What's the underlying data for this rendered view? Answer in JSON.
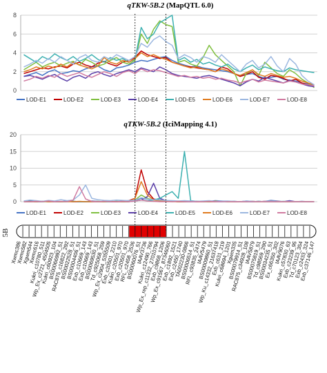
{
  "chart_data": [
    {
      "type": "line",
      "title_italic": "qTKW-5B.2",
      "title_rest": " (MapQTL 6.0)",
      "ylim": [
        0,
        8
      ],
      "yticks": [
        0,
        2,
        4,
        6,
        8
      ],
      "grid": true,
      "legend_position": "bottom",
      "qtl_interval_markers": [
        18,
        23
      ],
      "series": [
        {
          "name": "LOD-E1",
          "color": "#4472c4",
          "values": [
            1.5,
            1.7,
            1.9,
            1.6,
            2.0,
            2.2,
            1.8,
            1.9,
            2.1,
            2.0,
            2.3,
            2.5,
            2.6,
            2.2,
            2.0,
            2.4,
            2.5,
            2.7,
            3.0,
            3.2,
            3.1,
            3.3,
            3.5,
            3.6,
            3.2,
            2.9,
            2.7,
            2.5,
            2.6,
            2.4,
            2.3,
            2.2,
            2.1,
            2.0,
            1.8,
            1.6,
            1.7,
            1.8,
            1.5,
            1.3,
            1.4,
            1.5,
            1.2,
            1.1,
            1.0,
            0.8,
            0.7,
            0.6
          ]
        },
        {
          "name": "LOD-E2",
          "color": "#c00000",
          "values": [
            1.8,
            2.0,
            2.2,
            2.4,
            2.3,
            2.5,
            2.6,
            2.4,
            2.8,
            3.0,
            2.7,
            2.5,
            2.9,
            3.1,
            2.8,
            2.6,
            3.0,
            3.2,
            3.5,
            4.2,
            3.8,
            3.6,
            3.4,
            3.5,
            3.0,
            2.8,
            2.6,
            2.5,
            2.4,
            2.3,
            2.2,
            2.0,
            2.5,
            2.3,
            1.8,
            1.5,
            1.7,
            2.0,
            1.4,
            1.2,
            1.6,
            1.5,
            1.3,
            1.0,
            1.2,
            0.8,
            0.6,
            0.4
          ]
        },
        {
          "name": "LOD-E3",
          "color": "#7fbf3f",
          "values": [
            2.2,
            2.6,
            3.0,
            2.5,
            2.8,
            3.0,
            2.6,
            2.9,
            3.1,
            2.7,
            3.3,
            3.0,
            2.6,
            2.8,
            3.2,
            3.5,
            3.0,
            2.8,
            3.2,
            6.0,
            5.0,
            6.5,
            7.4,
            7.0,
            6.8,
            3.0,
            3.2,
            2.8,
            2.6,
            3.5,
            4.8,
            3.8,
            3.2,
            2.6,
            2.0,
            0.5,
            1.8,
            2.2,
            1.6,
            3.0,
            2.4,
            1.8,
            1.5,
            2.2,
            1.8,
            1.2,
            0.8,
            0.3
          ]
        },
        {
          "name": "LOD-E4",
          "color": "#5b3fa8",
          "values": [
            1.5,
            1.6,
            1.4,
            1.2,
            1.5,
            1.7,
            1.3,
            1.0,
            1.4,
            1.6,
            1.3,
            1.8,
            2.0,
            1.7,
            1.5,
            1.8,
            2.0,
            2.2,
            2.0,
            2.4,
            2.2,
            2.0,
            2.5,
            2.2,
            1.8,
            1.6,
            1.5,
            1.4,
            1.3,
            1.5,
            1.6,
            1.4,
            1.2,
            1.0,
            0.8,
            0.5,
            0.9,
            1.2,
            1.0,
            1.4,
            1.2,
            1.0,
            0.8,
            1.1,
            0.9,
            0.7,
            0.5,
            0.4
          ]
        },
        {
          "name": "LOD-E5",
          "color": "#3cb0b0",
          "values": [
            3.8,
            3.4,
            3.0,
            3.6,
            3.3,
            3.9,
            3.5,
            3.2,
            3.6,
            3.1,
            3.4,
            3.8,
            3.3,
            3.0,
            3.5,
            3.2,
            3.4,
            3.0,
            3.3,
            6.7,
            5.5,
            6.0,
            7.2,
            7.6,
            8.0,
            3.2,
            3.5,
            3.0,
            3.3,
            2.8,
            3.0,
            2.7,
            2.5,
            2.8,
            2.3,
            2.0,
            2.4,
            2.7,
            2.2,
            2.5,
            2.3,
            2.1,
            2.0,
            2.4,
            2.2,
            2.1,
            2.0,
            1.9
          ]
        },
        {
          "name": "LOD-E6",
          "color": "#e07b1f",
          "values": [
            2.0,
            2.2,
            2.5,
            2.3,
            2.6,
            2.4,
            2.8,
            2.5,
            3.0,
            2.7,
            2.5,
            2.3,
            2.6,
            3.5,
            3.0,
            2.8,
            3.2,
            3.0,
            3.4,
            4.0,
            3.6,
            3.8,
            3.5,
            3.3,
            3.0,
            2.8,
            2.6,
            2.4,
            2.5,
            2.3,
            2.2,
            2.0,
            2.3,
            2.1,
            1.8,
            1.6,
            1.9,
            2.2,
            1.7,
            1.5,
            1.8,
            1.6,
            1.4,
            1.5,
            1.3,
            1.0,
            0.8,
            0.6
          ]
        },
        {
          "name": "LOD-E7",
          "color": "#9bb7e0",
          "values": [
            2.5,
            2.8,
            3.2,
            2.9,
            3.4,
            3.0,
            3.6,
            3.2,
            2.8,
            3.5,
            3.8,
            3.2,
            3.0,
            3.6,
            3.3,
            3.8,
            3.5,
            3.2,
            3.6,
            5.0,
            4.6,
            5.4,
            5.8,
            5.2,
            4.8,
            3.4,
            3.8,
            3.5,
            3.0,
            3.6,
            3.4,
            3.0,
            3.8,
            3.2,
            2.6,
            2.0,
            2.8,
            3.2,
            2.4,
            2.8,
            3.6,
            2.6,
            2.0,
            3.4,
            2.8,
            1.6,
            1.0,
            0.6
          ]
        },
        {
          "name": "LOD-E8",
          "color": "#d07aa0",
          "values": [
            1.0,
            1.2,
            1.5,
            1.3,
            1.6,
            1.4,
            1.8,
            1.5,
            1.7,
            1.9,
            1.6,
            1.4,
            1.7,
            2.0,
            1.8,
            1.5,
            1.9,
            2.1,
            1.8,
            2.3,
            2.0,
            2.2,
            2.1,
            1.9,
            1.7,
            1.5,
            1.6,
            1.4,
            1.5,
            1.3,
            1.4,
            1.2,
            1.3,
            1.1,
            1.0,
            0.8,
            1.0,
            1.2,
            0.9,
            1.1,
            1.0,
            0.9,
            0.8,
            1.0,
            0.9,
            0.7,
            0.6,
            0.5
          ]
        }
      ]
    },
    {
      "type": "line",
      "title_italic": "qTKW-5B.2",
      "title_rest": " (IciMapping 4.1)",
      "ylim": [
        0,
        20
      ],
      "yticks": [
        0,
        5,
        10,
        15,
        20
      ],
      "grid": true,
      "legend_position": "bottom",
      "qtl_interval_markers": [
        18,
        23
      ],
      "series": [
        {
          "name": "LOD-E1",
          "color": "#4472c4",
          "values": [
            0,
            0.2,
            0.1,
            0,
            0.3,
            0.1,
            0,
            0.2,
            0.1,
            0,
            0,
            0.2,
            0.1,
            0,
            0.1,
            0,
            0.2,
            0.3,
            0.5,
            1.0,
            0.8,
            0.5,
            0.6,
            0.3,
            0.2,
            0.1,
            0,
            0.2,
            0.1,
            0,
            0.1,
            0.3,
            0.2,
            0,
            0.1,
            0,
            0.2,
            0.1,
            0,
            0.1,
            0.4,
            0.2,
            0,
            0.1,
            0,
            0.1,
            0,
            0
          ]
        },
        {
          "name": "LOD-E2",
          "color": "#c00000",
          "values": [
            0,
            0.1,
            0,
            0,
            0.1,
            0,
            0,
            0.1,
            0,
            0,
            0,
            0.1,
            0,
            0,
            0,
            0,
            0.1,
            0.3,
            1.0,
            9.5,
            3.0,
            0.8,
            0.5,
            0.2,
            0.1,
            0,
            0,
            0.1,
            0,
            0,
            0.1,
            0.2,
            0.1,
            0,
            0,
            0,
            0.1,
            0,
            0,
            0.1,
            0.2,
            0.1,
            0,
            0,
            0,
            0,
            0,
            0
          ]
        },
        {
          "name": "LOD-E3",
          "color": "#7fbf3f",
          "values": [
            0,
            0,
            0.1,
            0,
            0,
            0.1,
            0,
            0,
            0.1,
            0,
            0,
            0,
            0.1,
            0,
            0,
            0.1,
            0,
            0,
            0.5,
            2.0,
            1.0,
            0.5,
            0.3,
            0.2,
            0.1,
            0,
            0,
            0,
            0.1,
            0,
            0,
            0.2,
            0.1,
            0,
            0,
            0,
            0.1,
            0,
            0,
            0,
            0.1,
            0,
            0,
            0,
            0,
            0,
            0,
            0
          ]
        },
        {
          "name": "LOD-E4",
          "color": "#5b3fa8",
          "values": [
            0,
            0,
            0,
            0.1,
            0,
            0,
            0,
            0.1,
            0,
            0,
            0,
            0,
            0,
            0.1,
            0,
            0,
            0,
            0,
            0.2,
            0.5,
            1.5,
            5.5,
            1.0,
            0.3,
            0.1,
            0,
            0,
            0,
            0,
            0.1,
            0,
            0,
            0,
            0.1,
            0,
            0,
            0,
            0,
            0.1,
            0,
            0,
            0,
            0,
            0.3,
            0,
            0,
            0,
            0
          ]
        },
        {
          "name": "LOD-E5",
          "color": "#3cb0b0",
          "values": [
            0,
            0.1,
            0,
            0,
            0.1,
            0,
            0,
            0,
            0.1,
            0,
            0,
            0.1,
            0,
            0,
            0,
            0.1,
            0,
            0,
            0.3,
            0.5,
            0.3,
            0.5,
            1.0,
            2.0,
            3.0,
            1.0,
            15.0,
            0.3,
            0.1,
            0,
            0,
            0.1,
            0,
            0,
            0.1,
            0,
            0,
            0,
            0.1,
            0,
            0,
            0,
            0.1,
            0,
            0,
            0,
            0,
            0
          ]
        },
        {
          "name": "LOD-E6",
          "color": "#e07b1f",
          "values": [
            0,
            0,
            0,
            0.1,
            0,
            0,
            0,
            0,
            0,
            0.1,
            0,
            0,
            0,
            0,
            0.1,
            0,
            0,
            0,
            1.0,
            6.0,
            2.0,
            0.5,
            0.2,
            0.1,
            0,
            0,
            0,
            0.1,
            0,
            0,
            0,
            0,
            0.1,
            0,
            0,
            0,
            0,
            0.1,
            0,
            0,
            0,
            0,
            0,
            0,
            0,
            0,
            0,
            0
          ]
        },
        {
          "name": "LOD-E7",
          "color": "#9bb7e0",
          "values": [
            0.2,
            0.5,
            0.3,
            0.1,
            0.4,
            0.2,
            0.6,
            0.3,
            0.5,
            2.0,
            5.0,
            1.0,
            0.6,
            0.4,
            0.3,
            0.5,
            0.4,
            0.3,
            0.5,
            1.2,
            0.8,
            0.6,
            0.5,
            0.4,
            0.3,
            0.2,
            0.3,
            0.2,
            0.1,
            0.2,
            0.3,
            0.1,
            0.2,
            0.2,
            0.1,
            0,
            0.2,
            0.1,
            0,
            0.1,
            0.2,
            0.1,
            0,
            0.1,
            0,
            0,
            0,
            0
          ]
        },
        {
          "name": "LOD-E8",
          "color": "#d07aa0",
          "values": [
            0,
            0,
            0.1,
            0,
            0.2,
            0,
            0.1,
            0,
            0.5,
            4.5,
            0.8,
            0.1,
            0,
            0.1,
            0,
            0,
            0.1,
            0,
            0.2,
            0.5,
            0.2,
            0.1,
            0,
            0,
            0,
            0.1,
            0,
            0,
            0,
            0,
            0.1,
            0,
            0,
            0,
            0,
            0,
            0,
            0,
            0,
            0,
            0,
            0,
            0,
            0,
            0,
            0,
            0,
            0
          ]
        }
      ]
    }
  ],
  "chromosome": {
    "label": "5B",
    "highlight_color": "#e00000",
    "bin_count": 48,
    "highlight_bins": [
      18,
      23
    ],
    "markers": [
      "Xwmc386",
      "Xwmc582",
      "Xgwm544",
      "Xwmc616",
      "Kukri_c10780_511",
      "Wp_Ex_c2721_4504505",
      "Kukri_c60923_104",
      "BS00066992_51",
      "RAC875_c16822_292",
      "BS00022528_51",
      "BS00004406_51",
      "Exb_c10669_143",
      "Exb_c10669_143",
      "BS00069530_51",
      "Td_c925068_259",
      "Wp_Ex_c2904_5355509",
      "Exb_c20501_2210",
      "Kukri_c20501_970",
      "Exb_c20501_970",
      "RFL_c2458_2536",
      "BS00060076_51",
      "IAAV3736",
      "Kukri_c12490_766",
      "Wp_Ex_rep_c11332_27010794",
      "Exb_c9868_1206",
      "Wp_Ex_c91567_87346060",
      "Exb_c1892_1521",
      "Exb_c2450_1740",
      "TA002230-0866",
      "BS00006514_51",
      "RFL_c93835_2474",
      "IAAV5479",
      "BS00009860_51",
      "Wp_Ku_c14332_21637418",
      "Exb_c631_219",
      "Kukri_c68694_1201",
      "Xgwm335",
      "BS00079914_51",
      "RAC875_c34928_108",
      "IAAV5879",
      "BS00075819_51",
      "Td_c98569_290",
      "BS00034235_51",
      "Ex_c66350_302",
      "IAAV9076",
      "Kukri_c57830_63",
      "Exb_c23239_95",
      "Td_c70123_354",
      "Exb_c2433_324",
      "Exb_c37146_147"
    ]
  }
}
